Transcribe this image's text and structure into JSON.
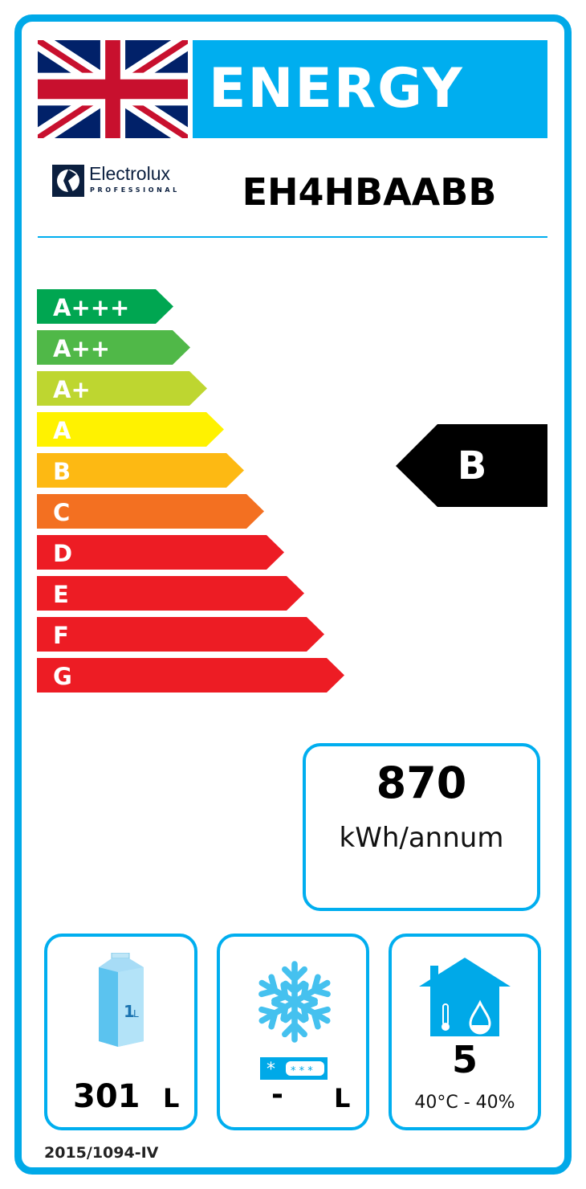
{
  "header": {
    "title": "ENERGY",
    "flag": "uk-flag-icon"
  },
  "brand": {
    "name": "Electrolux",
    "sub": "PROFESSIONAL"
  },
  "model": "EH4HBAABB",
  "scale": {
    "classes": [
      "A+++",
      "A++",
      "A+",
      "A",
      "B",
      "C",
      "D",
      "E",
      "F",
      "G"
    ],
    "colors": [
      "#00a651",
      "#50b848",
      "#bed630",
      "#fff200",
      "#fdb913",
      "#f37021",
      "#ed1c24",
      "#ed1c24",
      "#ed1c24",
      "#ed1c24"
    ]
  },
  "rating": {
    "class": "B",
    "color": "#000000"
  },
  "consumption": {
    "value": "870",
    "unit": "kWh/annum"
  },
  "volume": {
    "value": "301",
    "unit": "L",
    "icon": "milk-carton-icon",
    "carton_label": "1L"
  },
  "frozen": {
    "value": "-",
    "unit": "L",
    "icon": "snowflake-icon"
  },
  "climate": {
    "class": "5",
    "conditions": "40°C - 40%",
    "icon": "house-thermometer-drop-icon"
  },
  "regulation": "2015/1094-IV",
  "accent": "#00aeef"
}
